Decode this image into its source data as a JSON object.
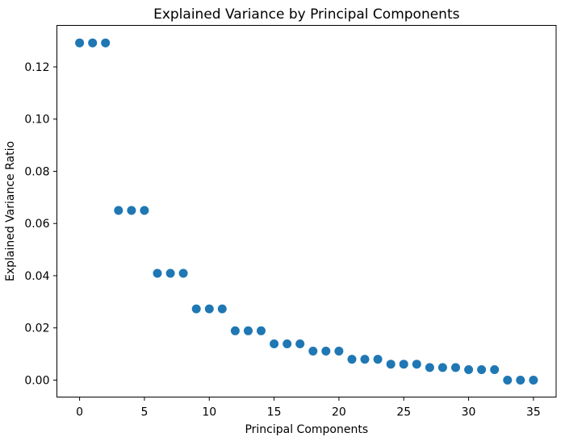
{
  "chart_data": {
    "type": "scatter",
    "title": "Explained Variance by Principal Components",
    "xlabel": "Principal Components",
    "ylabel": "Explained Variance Ratio",
    "x": [
      0,
      1,
      2,
      3,
      4,
      5,
      6,
      7,
      8,
      9,
      10,
      11,
      12,
      13,
      14,
      15,
      16,
      17,
      18,
      19,
      20,
      21,
      22,
      23,
      24,
      25,
      26,
      27,
      28,
      29,
      30,
      31,
      32,
      33,
      34,
      35
    ],
    "y": [
      0.1292,
      0.1292,
      0.1292,
      0.065,
      0.065,
      0.065,
      0.0409,
      0.0409,
      0.0409,
      0.0273,
      0.0273,
      0.0273,
      0.0189,
      0.0189,
      0.0189,
      0.0139,
      0.0139,
      0.0139,
      0.0111,
      0.0111,
      0.0111,
      0.008,
      0.008,
      0.008,
      0.0061,
      0.0061,
      0.0061,
      0.0048,
      0.0048,
      0.0048,
      0.004,
      0.004,
      0.004,
      0.0,
      0.0,
      0.0
    ],
    "xlim": [
      -1.75,
      36.75
    ],
    "ylim": [
      -0.0065,
      0.1359
    ],
    "xticks": [
      0,
      5,
      10,
      15,
      20,
      25,
      30,
      35
    ],
    "xticklabels": [
      "0",
      "5",
      "10",
      "15",
      "20",
      "25",
      "30",
      "35"
    ],
    "yticks": [
      0.0,
      0.02,
      0.04,
      0.06,
      0.08,
      0.1,
      0.12
    ],
    "yticklabels": [
      "0.00",
      "0.02",
      "0.04",
      "0.06",
      "0.08",
      "0.10",
      "0.12"
    ],
    "marker_color": "#1f77b4",
    "axis_color": "#000000",
    "background_color": "#ffffff",
    "grid": false,
    "legend_position": "none"
  }
}
